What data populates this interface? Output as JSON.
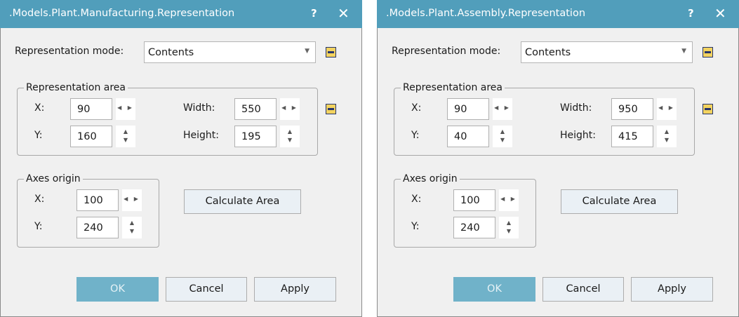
{
  "dialogs": [
    {
      "title": ".Models.Plant.Manufacturing.Representation",
      "help": "?",
      "close": "✕",
      "mode_label": "Representation mode:",
      "mode_value": "Contents",
      "area_legend": "Representation area",
      "x_label": "X:",
      "x_value": "90",
      "y_label": "Y:",
      "y_value": "160",
      "width_label": "Width:",
      "width_value": "550",
      "height_label": "Height:",
      "height_value": "195",
      "axes_legend": "Axes origin",
      "ax_label": "X:",
      "ax_value": "100",
      "ay_label": "Y:",
      "ay_value": "240",
      "calc": "Calculate Area",
      "ok": "OK",
      "cancel": "Cancel",
      "apply": "Apply"
    },
    {
      "title": ".Models.Plant.Assembly.Representation",
      "help": "?",
      "close": "✕",
      "mode_label": "Representation mode:",
      "mode_value": "Contents",
      "area_legend": "Representation area",
      "x_label": "X:",
      "x_value": "90",
      "y_label": "Y:",
      "y_value": "40",
      "width_label": "Width:",
      "width_value": "950",
      "height_label": "Height:",
      "height_value": "415",
      "axes_legend": "Axes origin",
      "ax_label": "X:",
      "ax_value": "100",
      "ay_label": "Y:",
      "ay_value": "240",
      "calc": "Calculate Area",
      "ok": "OK",
      "cancel": "Cancel",
      "apply": "Apply"
    }
  ],
  "colors": {
    "titlebar": "#519ebb",
    "ok_button": "#70b2c9",
    "minus_icon": "#f3d35f"
  },
  "icons": {
    "dropdown": "▼",
    "spin_horizontal": "◀ ▶",
    "spin_up": "▲",
    "spin_down": "▼"
  }
}
